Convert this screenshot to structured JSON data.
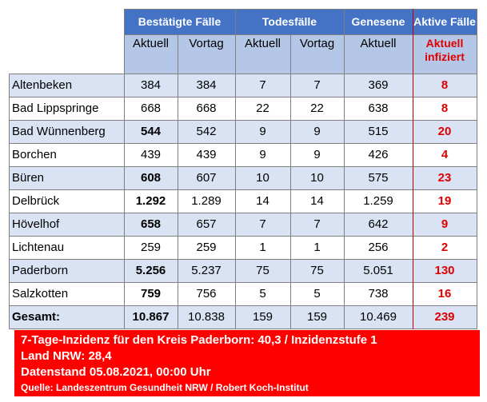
{
  "headers": {
    "bestaetigt": "Bestätigte Fälle",
    "todesfaelle": "Todesfälle",
    "genesene": "Genesene",
    "aktive": "Aktive Fälle"
  },
  "subheaders": {
    "aktuell": "Aktuell",
    "vortag": "Vortag",
    "aktuell_infiziert_1": "Aktuell",
    "aktuell_infiziert_2": "infiziert"
  },
  "rows": [
    {
      "name": "Altenbeken",
      "best_akt": "384",
      "best_vor": "384",
      "tod_akt": "7",
      "tod_vor": "7",
      "genesene": "369",
      "aktive": "8"
    },
    {
      "name": "Bad Lippspringe",
      "best_akt": "668",
      "best_vor": "668",
      "tod_akt": "22",
      "tod_vor": "22",
      "genesene": "638",
      "aktive": "8"
    },
    {
      "name": "Bad Wünnenberg",
      "best_akt": "544",
      "best_vor": "542",
      "tod_akt": "9",
      "tod_vor": "9",
      "genesene": "515",
      "aktive": "20"
    },
    {
      "name": "Borchen",
      "best_akt": "439",
      "best_vor": "439",
      "tod_akt": "9",
      "tod_vor": "9",
      "genesene": "426",
      "aktive": "4"
    },
    {
      "name": "Büren",
      "best_akt": "608",
      "best_vor": "607",
      "tod_akt": "10",
      "tod_vor": "10",
      "genesene": "575",
      "aktive": "23"
    },
    {
      "name": "Delbrück",
      "best_akt": "1.292",
      "best_vor": "1.289",
      "tod_akt": "14",
      "tod_vor": "14",
      "genesene": "1.259",
      "aktive": "19"
    },
    {
      "name": "Hövelhof",
      "best_akt": "658",
      "best_vor": "657",
      "tod_akt": "7",
      "tod_vor": "7",
      "genesene": "642",
      "aktive": "9"
    },
    {
      "name": "Lichtenau",
      "best_akt": "259",
      "best_vor": "259",
      "tod_akt": "1",
      "tod_vor": "1",
      "genesene": "256",
      "aktive": "2"
    },
    {
      "name": "Paderborn",
      "best_akt": "5.256",
      "best_vor": "5.237",
      "tod_akt": "75",
      "tod_vor": "75",
      "genesene": "5.051",
      "aktive": "130"
    },
    {
      "name": "Salzkotten",
      "best_akt": "759",
      "best_vor": "756",
      "tod_akt": "5",
      "tod_vor": "5",
      "genesene": "738",
      "aktive": "16"
    }
  ],
  "total": {
    "name": "Gesamt:",
    "best_akt": "10.867",
    "best_vor": "10.838",
    "tod_akt": "159",
    "tod_vor": "159",
    "genesene": "10.469",
    "aktive": "239"
  },
  "footer": {
    "line1": "7-Tage-Inzidenz für den Kreis Paderborn: 40,3 / Inzidenzstufe 1",
    "line2": "Land NRW: 28,4",
    "line3": "Datenstand 05.08.2021, 00:00 Uhr",
    "source": "Quelle: Landeszentrum Gesundheit NRW / Robert Koch-Institut"
  },
  "colors": {
    "header_blue": "#4472c4",
    "subheader_blue": "#b4c7e7",
    "row_alt": "#dae3f3",
    "active_red": "#e00000",
    "footer_red": "#ff0000"
  }
}
